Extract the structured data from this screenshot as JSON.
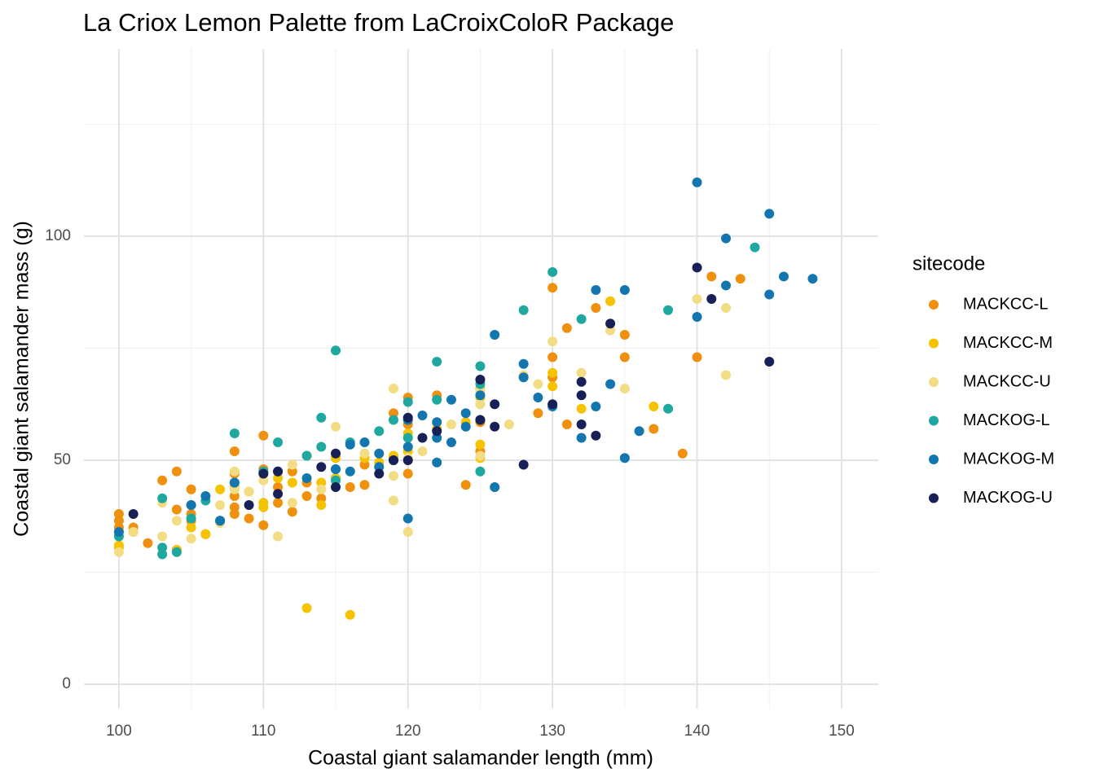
{
  "chart_data": {
    "type": "scatter",
    "title": "La Criox Lemon Palette from LaCroixColoR Package",
    "x_label": "Coastal giant salamander length (mm)",
    "y_label": "Coastal giant salamander mass (g)",
    "legend_title": "sitecode",
    "xlim": [
      97.58,
      152.54
    ],
    "ylim": [
      -5.45,
      141.8
    ],
    "xticks": [
      100,
      110,
      120,
      130,
      140,
      150
    ],
    "yticks": [
      0,
      50,
      100
    ],
    "xminor": [
      105,
      115,
      125,
      135,
      145
    ],
    "yminor": [
      25,
      75,
      125
    ],
    "grid": true,
    "legend": "right",
    "series": [
      {
        "name": "MACKCC-L",
        "color": "#F0900F",
        "x": [
          100,
          100,
          100,
          101,
          101,
          102,
          103,
          104,
          104,
          104,
          105,
          105,
          105,
          106,
          108,
          108,
          108,
          108,
          108,
          109,
          110,
          110,
          110,
          111,
          111,
          112,
          112,
          113,
          113,
          114,
          115,
          116,
          117,
          117,
          119,
          119,
          120,
          120,
          120,
          122,
          124,
          125,
          125,
          129,
          130,
          130,
          130,
          131,
          131,
          133,
          135,
          135,
          137,
          139,
          140,
          141,
          143
        ],
        "values": [
          38,
          36.5,
          35,
          35,
          34,
          31.5,
          45.5,
          47.5,
          39,
          30,
          43.5,
          38,
          36.5,
          33.5,
          52,
          47,
          42,
          39.5,
          38,
          37,
          55.5,
          48,
          35.5,
          44,
          40.5,
          47.5,
          38.5,
          42,
          45,
          41.5,
          50.5,
          44,
          49,
          44.5,
          50.5,
          60.5,
          64,
          58,
          47,
          64.5,
          44.5,
          58.5,
          52,
          60.5,
          88.5,
          73,
          68.5,
          58,
          79.5,
          84,
          78,
          73,
          57,
          51.5,
          73,
          91,
          90.5
        ]
      },
      {
        "name": "MACKCC-M",
        "color": "#F5C300",
        "x": [
          100,
          100,
          104,
          105,
          106,
          107,
          108,
          109,
          110,
          110,
          110,
          111,
          112,
          113,
          113,
          114,
          114,
          115,
          115,
          116,
          117,
          118,
          119,
          120,
          120,
          122,
          124,
          125,
          125,
          125,
          125,
          128,
          130,
          130,
          132,
          134,
          137
        ],
        "values": [
          31,
          30.5,
          30,
          35,
          33.5,
          43.5,
          44,
          43,
          47,
          40.5,
          39.5,
          46,
          45,
          17,
          51,
          45,
          40,
          50.5,
          46,
          15.5,
          50.5,
          49.5,
          51,
          56,
          52,
          57,
          58.5,
          66,
          53.5,
          50.5,
          64,
          68.5,
          69.5,
          66.5,
          61.5,
          85.5,
          62
        ]
      },
      {
        "name": "MACKCC-U",
        "color": "#F2DC84",
        "x": [
          100,
          100,
          101,
          103,
          103,
          104,
          105,
          107,
          107,
          108,
          108,
          109,
          110,
          111,
          112,
          112,
          114,
          115,
          117,
          119,
          119,
          119,
          120,
          120,
          121,
          123,
          125,
          125,
          125,
          127,
          128,
          129,
          130,
          132,
          134,
          135,
          140,
          142,
          142
        ],
        "values": [
          29.5,
          33,
          34,
          33,
          40.5,
          36.5,
          32.5,
          36,
          40,
          47.5,
          43.5,
          43,
          45.5,
          33,
          49,
          40.5,
          43.5,
          57.5,
          51.5,
          66,
          46.5,
          41,
          34,
          50.5,
          52,
          58,
          65.5,
          62.5,
          51,
          58,
          69,
          67,
          76.5,
          69.5,
          79,
          66,
          86,
          84,
          69
        ]
      },
      {
        "name": "MACKOG-L",
        "color": "#1FA8A0",
        "x": [
          100,
          103,
          103,
          103,
          104,
          105,
          105,
          106,
          107,
          108,
          108,
          110,
          111,
          113,
          114,
          114,
          115,
          115,
          115,
          116,
          118,
          119,
          120,
          120,
          122,
          122,
          125,
          125,
          125,
          128,
          130,
          132,
          138,
          138,
          144
        ],
        "values": [
          33,
          41.5,
          30.5,
          29,
          29.5,
          40,
          37,
          41,
          36.5,
          56,
          45,
          47.5,
          54,
          51,
          53,
          59.5,
          74.5,
          48,
          45.5,
          54,
          56.5,
          59,
          63,
          55,
          72,
          63.5,
          71,
          67,
          47.5,
          83.5,
          92,
          81.5,
          83.5,
          61.5,
          97.5
        ]
      },
      {
        "name": "MACKOG-M",
        "color": "#1376AF",
        "x": [
          100,
          105,
          106,
          107,
          108,
          111,
          113,
          115,
          116,
          116,
          117,
          118,
          118,
          119,
          120,
          120,
          120,
          121,
          122,
          122,
          122,
          123,
          123,
          124,
          124,
          125,
          125,
          126,
          126,
          128,
          128,
          129,
          130,
          132,
          133,
          133,
          134,
          135,
          135,
          136,
          140,
          140,
          142,
          142,
          145,
          145,
          146,
          148
        ],
        "values": [
          34,
          40,
          42,
          36.5,
          45,
          47.5,
          46,
          48,
          47.5,
          53.5,
          54,
          51.5,
          48.5,
          50,
          53,
          59,
          37,
          60,
          58.5,
          55,
          49.5,
          63.5,
          54,
          60.5,
          57.5,
          59,
          64.5,
          78,
          44,
          71.5,
          68.5,
          64,
          62,
          55,
          88,
          62,
          67,
          88,
          50.5,
          56.5,
          112,
          82,
          99.5,
          89,
          105,
          87,
          91,
          90.5
        ]
      },
      {
        "name": "MACKOG-U",
        "color": "#172157",
        "x": [
          101,
          109,
          110,
          111,
          111,
          114,
          115,
          115,
          118,
          119,
          120,
          120,
          121,
          122,
          125,
          125,
          126,
          126,
          128,
          130,
          132,
          132,
          132,
          133,
          134,
          140,
          141,
          145
        ],
        "values": [
          38,
          40,
          47,
          47.5,
          42.5,
          48.5,
          51.5,
          44,
          47,
          50,
          59.5,
          50,
          55,
          56.5,
          68,
          59,
          57.5,
          62.5,
          49,
          62.5,
          67.5,
          64.5,
          58,
          55.5,
          80.5,
          93,
          86,
          72
        ]
      }
    ]
  }
}
